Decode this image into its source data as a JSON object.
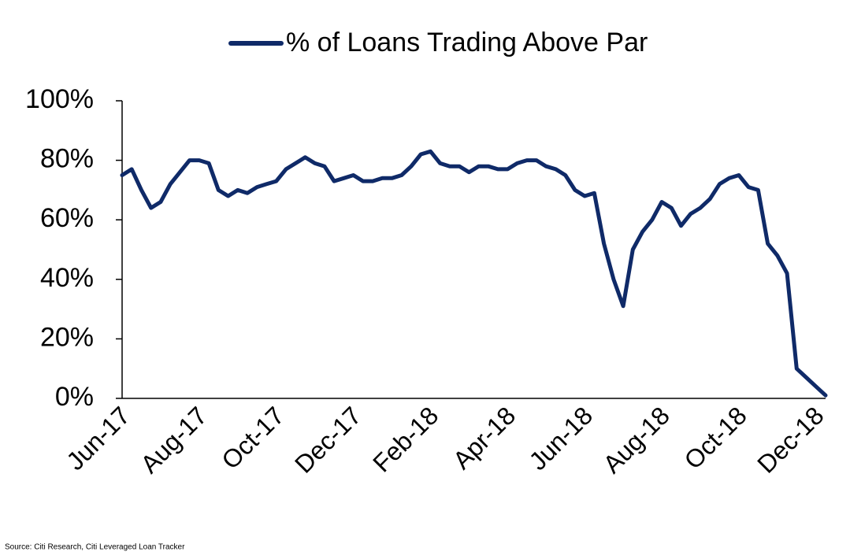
{
  "chart_data": {
    "type": "line",
    "source": "Source: Citi Research, Citi Leveraged Loan Tracker",
    "categories": [
      "Jun-17",
      null,
      null,
      null,
      null,
      null,
      null,
      null,
      "Aug-17",
      null,
      null,
      null,
      null,
      null,
      null,
      null,
      "Oct-17",
      null,
      null,
      null,
      null,
      null,
      null,
      null,
      "Dec-17",
      null,
      null,
      null,
      null,
      null,
      null,
      null,
      "Feb-18",
      null,
      null,
      null,
      null,
      null,
      null,
      null,
      "Apr-18",
      null,
      null,
      null,
      null,
      null,
      null,
      null,
      "Jun-18",
      null,
      null,
      null,
      null,
      null,
      null,
      null,
      "Aug-18",
      null,
      null,
      null,
      null,
      null,
      null,
      null,
      "Oct-18",
      null,
      null,
      null,
      null,
      null,
      null,
      null,
      "Dec-18",
      null
    ],
    "series": [
      {
        "name": "% of Loans Trading Above Par",
        "color": "#0f2a68",
        "values": [
          75,
          77,
          70,
          64,
          66,
          72,
          76,
          80,
          80,
          79,
          70,
          68,
          70,
          69,
          71,
          72,
          73,
          77,
          79,
          81,
          79,
          78,
          73,
          74,
          75,
          73,
          73,
          74,
          74,
          75,
          78,
          82,
          83,
          79,
          78,
          78,
          76,
          78,
          78,
          77,
          77,
          79,
          80,
          80,
          78,
          77,
          75,
          70,
          68,
          69,
          52,
          40,
          31,
          50,
          56,
          60,
          66,
          64,
          58,
          62,
          64,
          67,
          72,
          74,
          75,
          71,
          70,
          52,
          48,
          42,
          10,
          7,
          4,
          1
        ]
      }
    ],
    "ylim": [
      0,
      100
    ],
    "yticks": [
      {
        "value": 0,
        "label": "0%"
      },
      {
        "value": 20,
        "label": "20%"
      },
      {
        "value": 40,
        "label": "40%"
      },
      {
        "value": 60,
        "label": "60%"
      },
      {
        "value": 80,
        "label": "80%"
      },
      {
        "value": 100,
        "label": "100%"
      }
    ],
    "legend": "top"
  }
}
